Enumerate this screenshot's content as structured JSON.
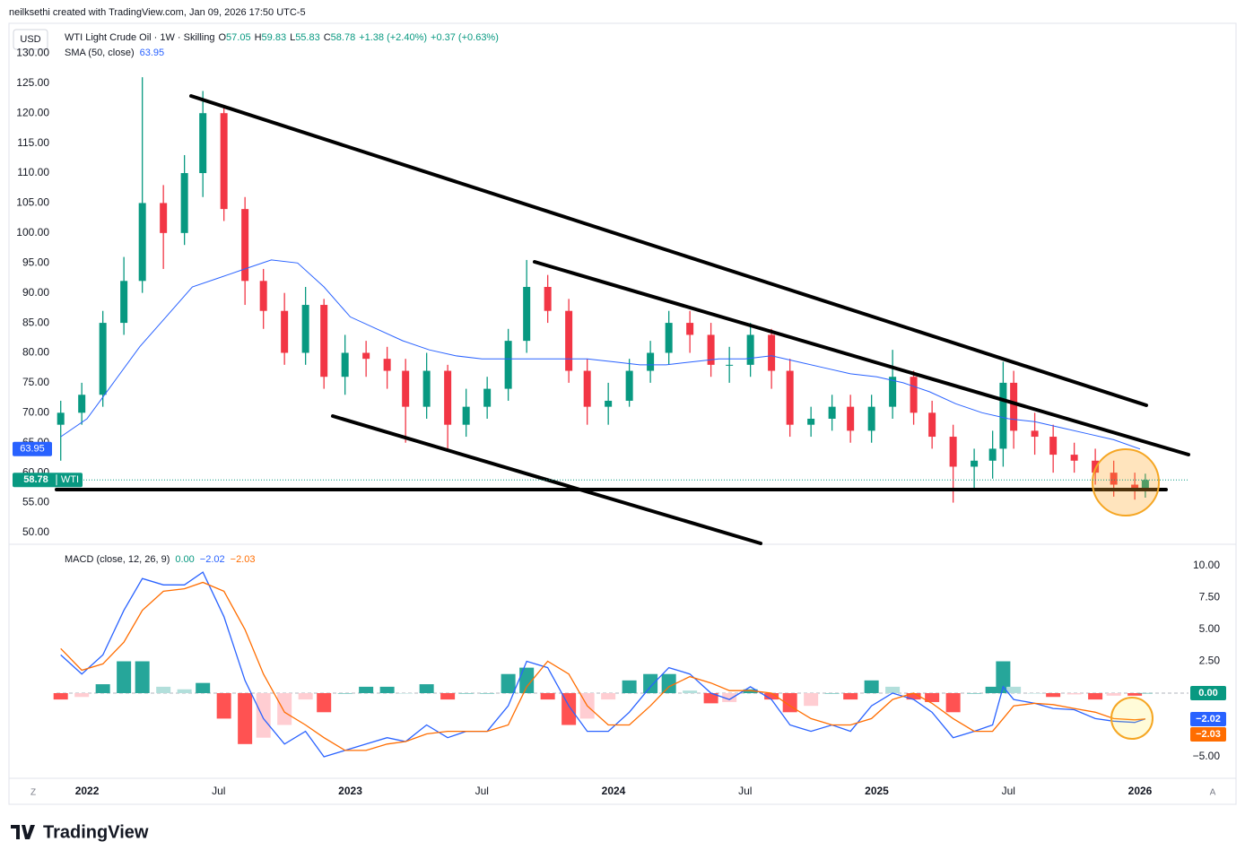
{
  "header": {
    "credit": "neilksethi created with TradingView.com, Jan 09, 2026 17:50 UTC-5",
    "currency": "USD"
  },
  "footer": {
    "brand": "TradingView",
    "left_button": "Z",
    "right_button": "A"
  },
  "chart_data": [
    {
      "type": "candlestick",
      "title": "WTI Light Crude Oil · 1W · Skilling",
      "ohlc_legend": [
        {
          "label": "O",
          "value": 57.05
        },
        {
          "label": "H",
          "value": 59.83
        },
        {
          "label": "L",
          "value": 55.83
        },
        {
          "label": "C",
          "value": 58.78
        }
      ],
      "change": "+1.38 (+2.40%)",
      "extended_change": "+0.37 (+0.63%)",
      "price_tag": {
        "value": 58.78,
        "label": "WTI",
        "color": "#089981"
      },
      "up_color": "#089981",
      "down_color": "#f23645",
      "x": [
        2021.9,
        2021.98,
        2022.06,
        2022.14,
        2022.21,
        2022.29,
        2022.37,
        2022.44,
        2022.52,
        2022.6,
        2022.67,
        2022.75,
        2022.83,
        2022.9,
        2022.98,
        2023.06,
        2023.14,
        2023.21,
        2023.29,
        2023.37,
        2023.44,
        2023.52,
        2023.6,
        2023.67,
        2023.75,
        2023.83,
        2023.9,
        2023.98,
        2024.06,
        2024.14,
        2024.21,
        2024.29,
        2024.37,
        2024.44,
        2024.52,
        2024.6,
        2024.67,
        2024.75,
        2024.83,
        2024.9,
        2024.98,
        2025.06,
        2025.14,
        2025.21,
        2025.29,
        2025.37,
        2025.44,
        2025.48,
        2025.52,
        2025.6,
        2025.67,
        2025.75,
        2025.83,
        2025.9,
        2025.98,
        2026.02
      ],
      "open": [
        68,
        70,
        73,
        85,
        92,
        105,
        100,
        110,
        120,
        104,
        92,
        87,
        80,
        88,
        76,
        80,
        79,
        77,
        71,
        77,
        68,
        71,
        74,
        82,
        91,
        87,
        77,
        71,
        72,
        77,
        80,
        85,
        83,
        78,
        78,
        83,
        77,
        68,
        69,
        71,
        67,
        71,
        76,
        70,
        66,
        61,
        62,
        64,
        75,
        67,
        66,
        63,
        62,
        60,
        58,
        57.05
      ],
      "high": [
        72,
        75,
        87,
        96,
        126,
        108,
        113,
        123.7,
        121,
        106,
        94,
        90,
        91,
        89,
        83,
        82,
        81,
        79,
        80,
        78,
        74,
        76,
        84,
        95.5,
        93,
        89,
        79,
        75,
        79,
        82,
        87,
        87,
        85,
        81,
        85,
        84,
        79,
        71,
        73,
        73,
        73,
        80.5,
        77,
        72,
        68,
        64,
        67,
        78.5,
        77,
        70,
        68,
        65,
        64,
        62,
        60,
        59.83
      ],
      "low": [
        62,
        68,
        71,
        83,
        90,
        94,
        98,
        106,
        102,
        88,
        84,
        78,
        78,
        74,
        73,
        76,
        74,
        65,
        69,
        64,
        66,
        69,
        72,
        80,
        85,
        75,
        68,
        68,
        71,
        75,
        78,
        80,
        76,
        75,
        76,
        74,
        66,
        66,
        67,
        65,
        65,
        69,
        68,
        64,
        55,
        57,
        59,
        61,
        64,
        63,
        60,
        60,
        58,
        56,
        55.5,
        55.83
      ],
      "close": [
        70,
        73,
        85,
        92,
        105,
        100,
        110,
        120,
        104,
        92,
        87,
        80,
        88,
        76,
        80,
        79,
        77,
        71,
        77,
        68,
        71,
        74,
        82,
        91,
        87,
        77,
        71,
        72,
        77,
        80,
        85,
        83,
        78,
        78,
        83,
        77,
        68,
        69,
        71,
        67,
        71,
        76,
        70,
        66,
        61,
        62,
        64,
        75,
        67,
        66,
        63,
        62,
        60,
        58,
        57.4,
        58.78
      ],
      "sma": {
        "name": "SMA (50, close)",
        "color": "#2962ff",
        "x": [
          2021.9,
          2022.0,
          2022.1,
          2022.2,
          2022.3,
          2022.4,
          2022.5,
          2022.6,
          2022.7,
          2022.8,
          2022.9,
          2023.0,
          2023.1,
          2023.2,
          2023.3,
          2023.4,
          2023.5,
          2023.6,
          2023.7,
          2023.8,
          2023.9,
          2024.0,
          2024.1,
          2024.2,
          2024.3,
          2024.4,
          2024.5,
          2024.6,
          2024.7,
          2024.8,
          2024.9,
          2025.0,
          2025.1,
          2025.2,
          2025.3,
          2025.4,
          2025.5,
          2025.6,
          2025.7,
          2025.8,
          2025.9,
          2026.0
        ],
        "values": [
          66,
          69,
          75,
          81,
          86,
          91,
          92.5,
          94,
          95.5,
          95,
          91,
          86,
          84,
          82,
          80.5,
          79.5,
          79,
          79,
          79,
          79,
          79,
          78.5,
          78,
          78,
          78.5,
          79,
          79,
          79.5,
          78.5,
          77.5,
          76.5,
          76,
          75,
          73.5,
          71.5,
          70,
          69,
          68.5,
          67.5,
          66.5,
          65.5,
          63.95
        ]
      },
      "xlim": [
        2021.884,
        2026.184
      ],
      "xticks": [
        {
          "value": 2022,
          "label": "2022"
        },
        {
          "value": 2022.5,
          "label": "Jul"
        },
        {
          "value": 2023,
          "label": "2023"
        },
        {
          "value": 2023.5,
          "label": "Jul"
        },
        {
          "value": 2024,
          "label": "2024"
        },
        {
          "value": 2024.5,
          "label": "Jul"
        },
        {
          "value": 2025,
          "label": "2025"
        },
        {
          "value": 2025.5,
          "label": "Jul"
        },
        {
          "value": 2026,
          "label": "2026"
        }
      ],
      "ylim": [
        48.05,
        132.9
      ],
      "yticks": [
        {
          "value": 50,
          "label": "50.00"
        },
        {
          "value": 55,
          "label": "55.00"
        },
        {
          "value": 60,
          "label": "60.00"
        },
        {
          "value": 65,
          "label": "65.00"
        },
        {
          "value": 70,
          "label": "70.00"
        },
        {
          "value": 75,
          "label": "75.00"
        },
        {
          "value": 80,
          "label": "80.00"
        },
        {
          "value": 85,
          "label": "85.00"
        },
        {
          "value": 90,
          "label": "90.00"
        },
        {
          "value": 95,
          "label": "95.00"
        },
        {
          "value": 100,
          "label": "100.00"
        },
        {
          "value": 105,
          "label": "105.00"
        },
        {
          "value": 110,
          "label": "110.00"
        },
        {
          "value": 115,
          "label": "115.00"
        },
        {
          "value": 120,
          "label": "120.00"
        },
        {
          "value": 125,
          "label": "125.00"
        },
        {
          "value": 130,
          "label": "130.00"
        }
      ],
      "grid": false
    },
    {
      "type": "macd",
      "title": "MACD (close, 12, 26, 9)",
      "legend_values": [
        {
          "label": "0.00",
          "color": "#089981"
        },
        {
          "label": "−2.02",
          "color": "#2962ff"
        },
        {
          "label": "−2.03",
          "color": "#ff6d00"
        }
      ],
      "x": [
        2021.9,
        2021.98,
        2022.06,
        2022.14,
        2022.21,
        2022.29,
        2022.37,
        2022.44,
        2022.52,
        2022.6,
        2022.67,
        2022.75,
        2022.83,
        2022.9,
        2022.98,
        2023.06,
        2023.14,
        2023.21,
        2023.29,
        2023.37,
        2023.44,
        2023.52,
        2023.6,
        2023.67,
        2023.75,
        2023.83,
        2023.9,
        2023.98,
        2024.06,
        2024.14,
        2024.21,
        2024.29,
        2024.37,
        2024.44,
        2024.52,
        2024.6,
        2024.67,
        2024.75,
        2024.83,
        2024.9,
        2024.98,
        2025.06,
        2025.14,
        2025.21,
        2025.29,
        2025.37,
        2025.44,
        2025.48,
        2025.52,
        2025.6,
        2025.67,
        2025.75,
        2025.83,
        2025.9,
        2025.98,
        2026.02
      ],
      "histogram": {
        "colors": [
          "#26a69a",
          "#b2dfdb",
          "#ff5252",
          "#ffcdd2"
        ],
        "values": [
          -0.5,
          -0.3,
          0.7,
          2.5,
          2.5,
          0.5,
          0.3,
          0.8,
          -2,
          -4,
          -3.5,
          -2.5,
          -0.5,
          -1.5,
          0,
          0.5,
          0.5,
          0,
          0.7,
          -0.5,
          0,
          0,
          1.5,
          2,
          -0.5,
          -2.5,
          -2,
          -0.5,
          1,
          1.5,
          1.5,
          0.2,
          -0.8,
          -0.7,
          0.3,
          -0.5,
          -1.5,
          -1,
          0,
          -0.5,
          1,
          0.5,
          -0.5,
          -0.7,
          -1.5,
          0,
          0.5,
          2.5,
          0.5,
          0,
          -0.3,
          -0.1,
          -0.5,
          -0.2,
          -0.2,
          0.01
        ]
      },
      "series": [
        {
          "color": "#2962ff",
          "values": [
            3,
            1.5,
            3,
            6.5,
            9,
            8.5,
            8.5,
            9.5,
            6,
            1,
            -2,
            -4,
            -3,
            -5,
            -4.5,
            -4,
            -3.5,
            -3.8,
            -2.5,
            -3.5,
            -3,
            -3,
            -1,
            2.5,
            2,
            -1,
            -3,
            -3,
            -1.5,
            0.5,
            2,
            1.5,
            0,
            -0.5,
            0.5,
            -0.5,
            -2.5,
            -3,
            -2.5,
            -3,
            -1,
            0,
            -0.5,
            -1.5,
            -3.5,
            -3,
            -2.5,
            0.5,
            -0.5,
            -0.8,
            -1.2,
            -1.3,
            -2,
            -2.2,
            -2.3,
            -2.02
          ]
        },
        {
          "color": "#ff6d00",
          "values": [
            3.5,
            1.8,
            2.3,
            4,
            6.5,
            8,
            8.2,
            8.7,
            8,
            5,
            1.5,
            -1.5,
            -2.5,
            -3.5,
            -4.5,
            -4.5,
            -4,
            -3.8,
            -3.2,
            -3,
            -3,
            -3,
            -2.5,
            0.5,
            2.5,
            1.5,
            -1,
            -2.5,
            -2.5,
            -1,
            0.5,
            1.3,
            0.8,
            0.2,
            0.2,
            0,
            -1,
            -2,
            -2.5,
            -2.5,
            -2,
            -0.5,
            0,
            -0.8,
            -2,
            -3,
            -3,
            -2,
            -1,
            -0.8,
            -0.9,
            -1.2,
            -1.5,
            -2,
            -2.1,
            -2.03
          ]
        }
      ],
      "ylim": [
        -6.83,
        11.48
      ],
      "yticks": [
        {
          "value": 10,
          "label": "10.00"
        },
        {
          "value": 7.5,
          "label": "7.50"
        },
        {
          "value": 5,
          "label": "5.00"
        },
        {
          "value": 2.5,
          "label": "2.50"
        },
        {
          "value": -5,
          "label": "−5.00"
        }
      ]
    }
  ]
}
